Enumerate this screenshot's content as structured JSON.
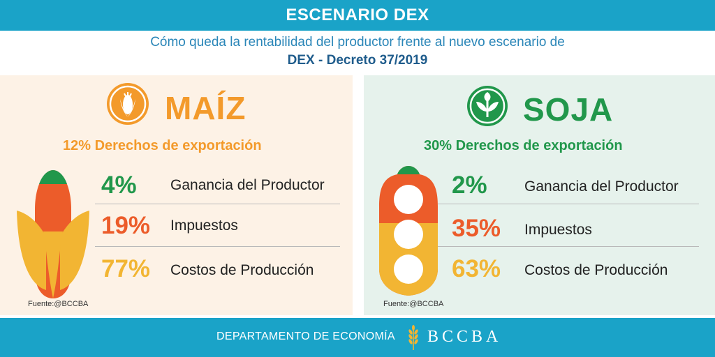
{
  "header": {
    "title": "ESCENARIO DEX",
    "subtitle": "Cómo queda la rentabilidad del productor frente al nuevo escenario de",
    "subtitle_bold": "DEX - Decreto 37/2019"
  },
  "colors": {
    "header_blue": "#1aa3c8",
    "orange": "#f39a2b",
    "red_orange": "#ec5c2a",
    "yellow": "#f2b533",
    "green_dark": "#21974b",
    "green_light": "#2f9e4c"
  },
  "maiz": {
    "title": "MAÍZ",
    "tax": "12% Derechos de exportación",
    "icon": "corn-icon",
    "rows": [
      {
        "pct": "4%",
        "label": "Ganancia del Productor"
      },
      {
        "pct": "19%",
        "label": "Impuestos"
      },
      {
        "pct": "77%",
        "label": "Costos de Producción"
      }
    ],
    "source": "Fuente:@BCCBA"
  },
  "soja": {
    "title": "SOJA",
    "tax": "30% Derechos de exportación",
    "icon": "plant-icon",
    "rows": [
      {
        "pct": "2%",
        "label": "Ganancia del Productor"
      },
      {
        "pct": "35%",
        "label": "Impuestos"
      },
      {
        "pct": "63%",
        "label": "Costos de Producción"
      }
    ],
    "source": "Fuente:@BCCBA"
  },
  "footer": {
    "department": "DEPARTAMENTO DE ECONOMÍA",
    "brand": "BCCBA",
    "icon": "wheat-icon"
  }
}
